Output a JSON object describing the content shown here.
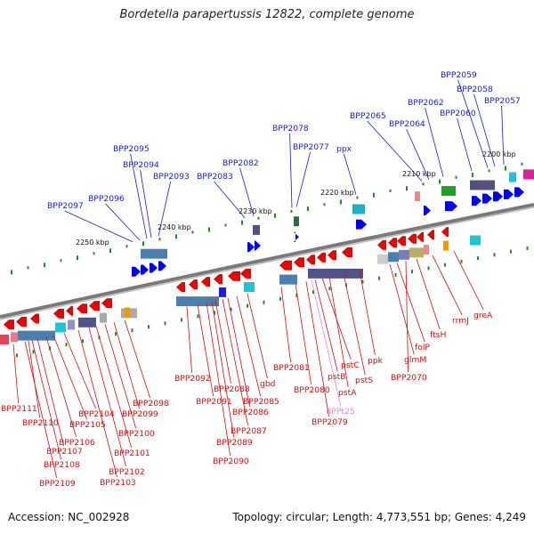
{
  "title": "Bordetella parapertussis 12822, complete genome",
  "footer": {
    "accession": "Accession: NC_002928",
    "summary": "Topology: circular; Length: 4,773,551 bp; Genes: 4,249"
  },
  "colors": {
    "forward_label": "#1a1acc",
    "reverse_label": "#cc1111",
    "rna_label": "#e58ad6",
    "forward_arrow": "#0000ee",
    "reverse_arrow": "#ee0000",
    "backbone": "#888888",
    "tick": "#228b22"
  },
  "ruler": {
    "labels": [
      "2250 kbp",
      "2240 kbp",
      "2230 kbp",
      "2220 kbp",
      "2210 kbp",
      "2200 kbp"
    ]
  },
  "forward_genes": [
    "BPP2097",
    "BPP2096",
    "BPP2095",
    "BPP2094",
    "BPP2093",
    "BPP2083",
    "BPP2082",
    "BPP2078",
    "BPP2077",
    "ppx",
    "BPP2065",
    "BPP2064",
    "BPP2062",
    "BPP2060",
    "BPP2059",
    "BPP2058",
    "BPP2057"
  ],
  "reverse_genes": [
    "BPP2111",
    "BPP2110",
    "BPP2107",
    "BPP2106",
    "BPP2105",
    "BPP2104",
    "BPP2108",
    "BPP2109",
    "BPP2103",
    "BPP2102",
    "BPP2101",
    "BPP2100",
    "BPP2099",
    "BPP2098",
    "BPP2092",
    "BPP2091",
    "BPP2090",
    "BPP2089",
    "BPP2088",
    "BPP2087",
    "BPP2086",
    "BPP2085",
    "gbd",
    "BPP2081",
    "BPP2080",
    "BPP2079",
    "pstB",
    "pstC",
    "pstA",
    "pstS",
    "ppk",
    "glmM",
    "folP",
    "BPP2070",
    "ftsH",
    "rrmJ",
    "greA"
  ],
  "rna_genes": [
    "BPPt25"
  ]
}
